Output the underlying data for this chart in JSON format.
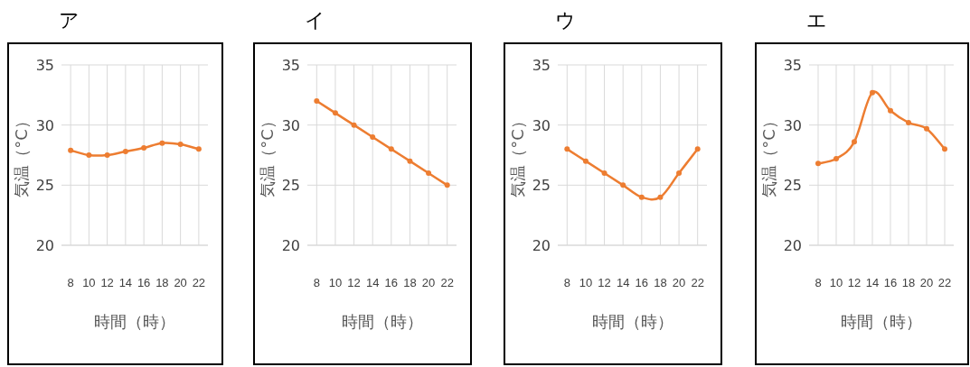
{
  "chart_data": [
    {
      "type": "line",
      "title": "ア",
      "xlabel": "時間（時）",
      "ylabel": "気温（°C）",
      "categories": [
        "8",
        "10",
        "12",
        "14",
        "16",
        "18",
        "20",
        "22"
      ],
      "ylim": [
        20,
        35
      ],
      "yticks": [
        20,
        25,
        30,
        35
      ],
      "grid": true,
      "marker": "circle",
      "line_style": "solid",
      "series": [
        {
          "color": "#ed7d31",
          "values": [
            27.9,
            27.5,
            27.5,
            27.8,
            28.1,
            28.5,
            28.4,
            28.0
          ]
        }
      ]
    },
    {
      "type": "line",
      "title": "イ",
      "xlabel": "時間（時）",
      "ylabel": "気温（°C）",
      "categories": [
        "8",
        "10",
        "12",
        "14",
        "16",
        "18",
        "20",
        "22"
      ],
      "ylim": [
        20,
        35
      ],
      "yticks": [
        20,
        25,
        30,
        35
      ],
      "grid": true,
      "marker": "circle",
      "line_style": "solid",
      "series": [
        {
          "color": "#ed7d31",
          "values": [
            32,
            31,
            30,
            29,
            28,
            27,
            26,
            25
          ]
        }
      ]
    },
    {
      "type": "line",
      "title": "ウ",
      "xlabel": "時間（時）",
      "ylabel": "気温（°C）",
      "categories": [
        "8",
        "10",
        "12",
        "14",
        "16",
        "18",
        "20",
        "22"
      ],
      "ylim": [
        20,
        35
      ],
      "yticks": [
        20,
        25,
        30,
        35
      ],
      "grid": true,
      "marker": "circle",
      "line_style": "solid",
      "series": [
        {
          "color": "#ed7d31",
          "values": [
            28,
            27,
            26,
            25,
            24,
            24,
            26,
            28
          ]
        }
      ]
    },
    {
      "type": "line",
      "title": "エ",
      "xlabel": "時間（時）",
      "ylabel": "気温（°C）",
      "categories": [
        "8",
        "10",
        "12",
        "14",
        "16",
        "18",
        "20",
        "22"
      ],
      "ylim": [
        20,
        35
      ],
      "yticks": [
        20,
        25,
        30,
        35
      ],
      "grid": true,
      "marker": "circle",
      "line_style": "solid",
      "series": [
        {
          "color": "#ed7d31",
          "values": [
            26.8,
            27.2,
            28.6,
            32.7,
            31.2,
            30.2,
            29.7,
            28.0
          ]
        }
      ]
    }
  ]
}
